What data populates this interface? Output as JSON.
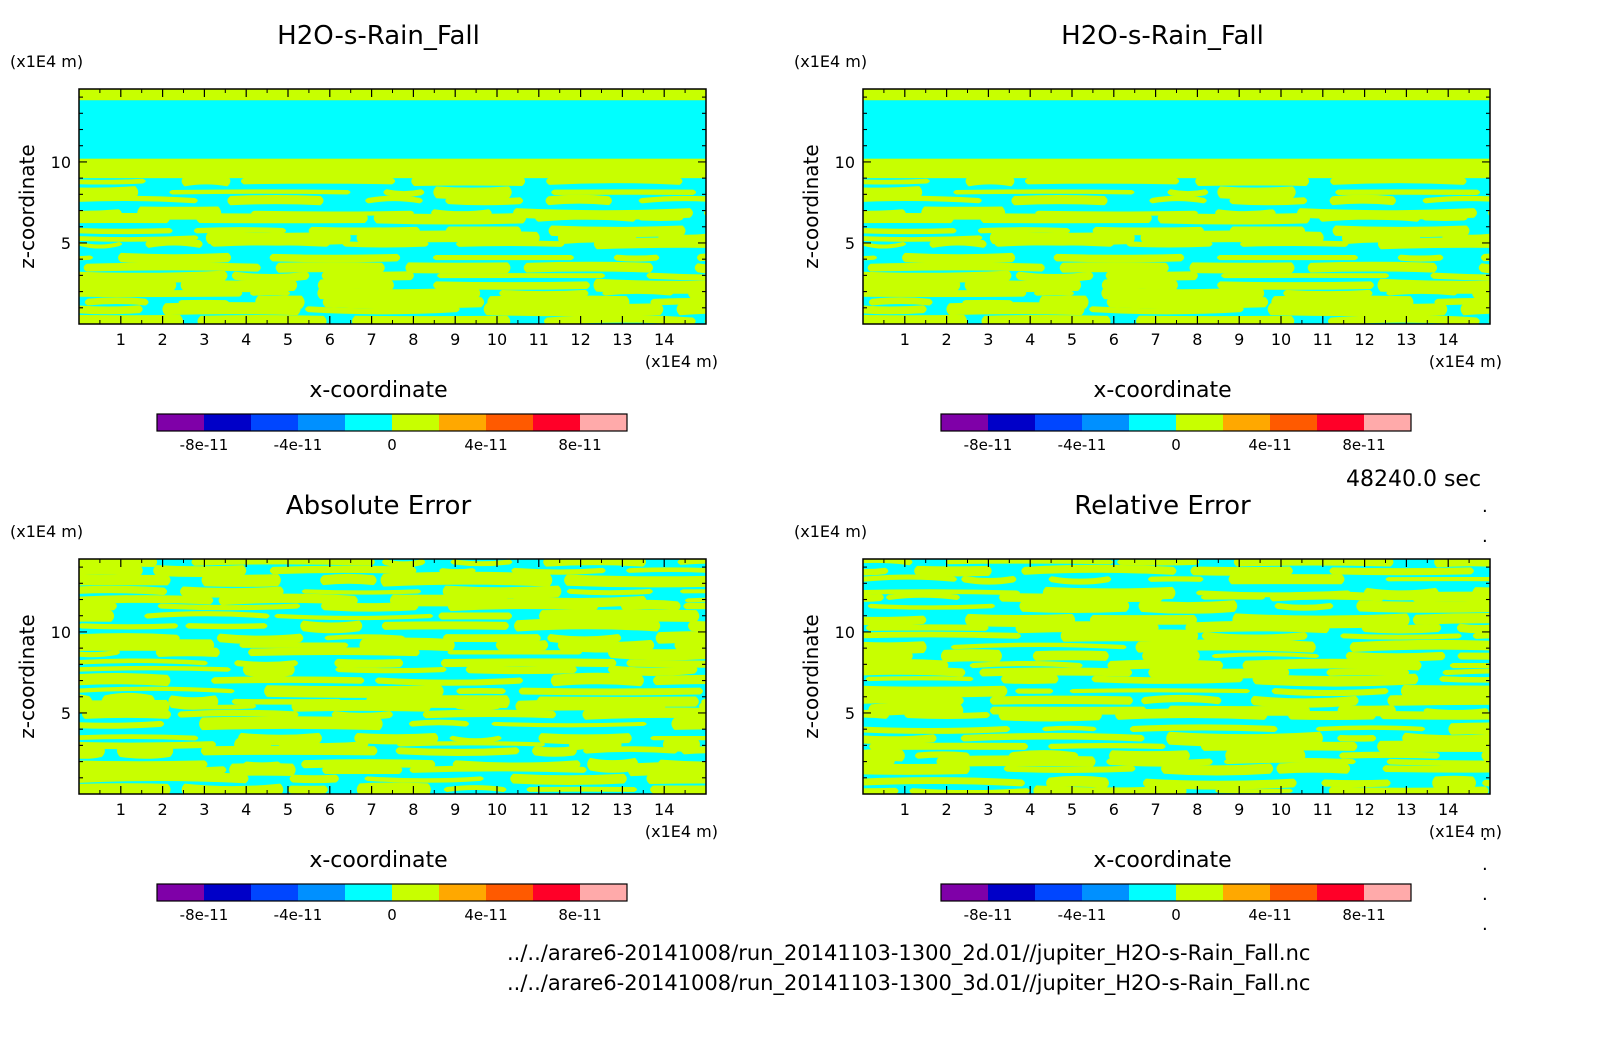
{
  "figure_info": {
    "time_label": "48240.0 sec",
    "files": [
      "../../arare6-20141008/run_20141103-1300_2d.01//jupiter_H2O-s-Rain_Fall.nc",
      "../../arare6-20141008/run_20141103-1300_3d.01//jupiter_H2O-s-Rain_Fall.nc"
    ],
    "dots": [
      ".",
      ".",
      ".",
      ".",
      ".",
      "."
    ]
  },
  "colors": {
    "palette": [
      "#7f00a8",
      "#0000c8",
      "#0046ff",
      "#0090ff",
      "#00ffff",
      "#c8ff00",
      "#ffa800",
      "#ff5a00",
      "#ff0028",
      "#ffaaaa"
    ],
    "fill_low": "#00ffff",
    "fill_high": "#c8ff00"
  },
  "chart_data": [
    {
      "type": "heatmap",
      "title": "H2O-s-Rain_Fall",
      "xlabel": "x-coordinate",
      "ylabel": "z-coordinate",
      "x_unit": "(x1E4 m)",
      "y_unit": "(x1E4 m)",
      "xlim": [
        0,
        15
      ],
      "ylim": [
        0,
        14.5
      ],
      "x_ticks": [
        "1",
        "2",
        "3",
        "4",
        "5",
        "6",
        "7",
        "8",
        "9",
        "10",
        "11",
        "12",
        "13",
        "14"
      ],
      "y_ticks": [
        "5",
        "10"
      ],
      "colorbar": {
        "levels": [
          -1e-10,
          -8e-11,
          -6e-11,
          -4e-11,
          -2e-11,
          0,
          2e-11,
          4e-11,
          6e-11,
          8e-11,
          1e-10
        ],
        "labels": [
          "-8e-11",
          "-4e-11",
          "0",
          "4e-11",
          "8e-11"
        ]
      },
      "field": {
        "bands": [
          {
            "z": [
              13.8,
              14.5
            ],
            "value": "positive"
          },
          {
            "z": [
              10.2,
              13.8
            ],
            "value": "zero"
          },
          {
            "z": [
              9.0,
              10.2
            ],
            "value": "positive"
          },
          {
            "z": [
              0,
              9.0
            ],
            "value": "mixed"
          }
        ]
      },
      "seed": 11
    },
    {
      "type": "heatmap",
      "title": "H2O-s-Rain_Fall",
      "xlabel": "x-coordinate",
      "ylabel": "z-coordinate",
      "x_unit": "(x1E4 m)",
      "y_unit": "(x1E4 m)",
      "xlim": [
        0,
        15
      ],
      "ylim": [
        0,
        14.5
      ],
      "x_ticks": [
        "1",
        "2",
        "3",
        "4",
        "5",
        "6",
        "7",
        "8",
        "9",
        "10",
        "11",
        "12",
        "13",
        "14"
      ],
      "y_ticks": [
        "5",
        "10"
      ],
      "colorbar": {
        "levels": [
          -1e-10,
          -8e-11,
          -6e-11,
          -4e-11,
          -2e-11,
          0,
          2e-11,
          4e-11,
          6e-11,
          8e-11,
          1e-10
        ],
        "labels": [
          "-8e-11",
          "-4e-11",
          "0",
          "4e-11",
          "8e-11"
        ]
      },
      "field": {
        "bands": [
          {
            "z": [
              13.8,
              14.5
            ],
            "value": "positive"
          },
          {
            "z": [
              10.2,
              13.8
            ],
            "value": "zero"
          },
          {
            "z": [
              9.0,
              10.2
            ],
            "value": "positive"
          },
          {
            "z": [
              0,
              9.0
            ],
            "value": "mixed"
          }
        ]
      },
      "seed": 11
    },
    {
      "type": "heatmap",
      "title": "Absolute Error",
      "xlabel": "x-coordinate",
      "ylabel": "z-coordinate",
      "x_unit": "(x1E4 m)",
      "y_unit": "(x1E4 m)",
      "xlim": [
        0,
        15
      ],
      "ylim": [
        0,
        14.5
      ],
      "x_ticks": [
        "1",
        "2",
        "3",
        "4",
        "5",
        "6",
        "7",
        "8",
        "9",
        "10",
        "11",
        "12",
        "13",
        "14"
      ],
      "y_ticks": [
        "5",
        "10"
      ],
      "colorbar": {
        "levels": [
          -1e-10,
          -8e-11,
          -6e-11,
          -4e-11,
          -2e-11,
          0,
          2e-11,
          4e-11,
          6e-11,
          8e-11,
          1e-10
        ],
        "labels": [
          "-8e-11",
          "-4e-11",
          "0",
          "4e-11",
          "8e-11"
        ]
      },
      "field": {
        "bands": [
          {
            "z": [
              0,
              14.5
            ],
            "value": "mixed"
          }
        ]
      },
      "seed": 27
    },
    {
      "type": "heatmap",
      "title": "Relative Error",
      "xlabel": "x-coordinate",
      "ylabel": "z-coordinate",
      "x_unit": "(x1E4 m)",
      "y_unit": "(x1E4 m)",
      "xlim": [
        0,
        15
      ],
      "ylim": [
        0,
        14.5
      ],
      "x_ticks": [
        "1",
        "2",
        "3",
        "4",
        "5",
        "6",
        "7",
        "8",
        "9",
        "10",
        "11",
        "12",
        "13",
        "14"
      ],
      "y_ticks": [
        "5",
        "10"
      ],
      "colorbar": {
        "levels": [
          -1e-10,
          -8e-11,
          -6e-11,
          -4e-11,
          -2e-11,
          0,
          2e-11,
          4e-11,
          6e-11,
          8e-11,
          1e-10
        ],
        "labels": [
          "-8e-11",
          "-4e-11",
          "0",
          "4e-11",
          "8e-11"
        ]
      },
      "field": {
        "bands": [
          {
            "z": [
              0,
              14.5
            ],
            "value": "mixed"
          }
        ]
      },
      "seed": 43
    }
  ]
}
